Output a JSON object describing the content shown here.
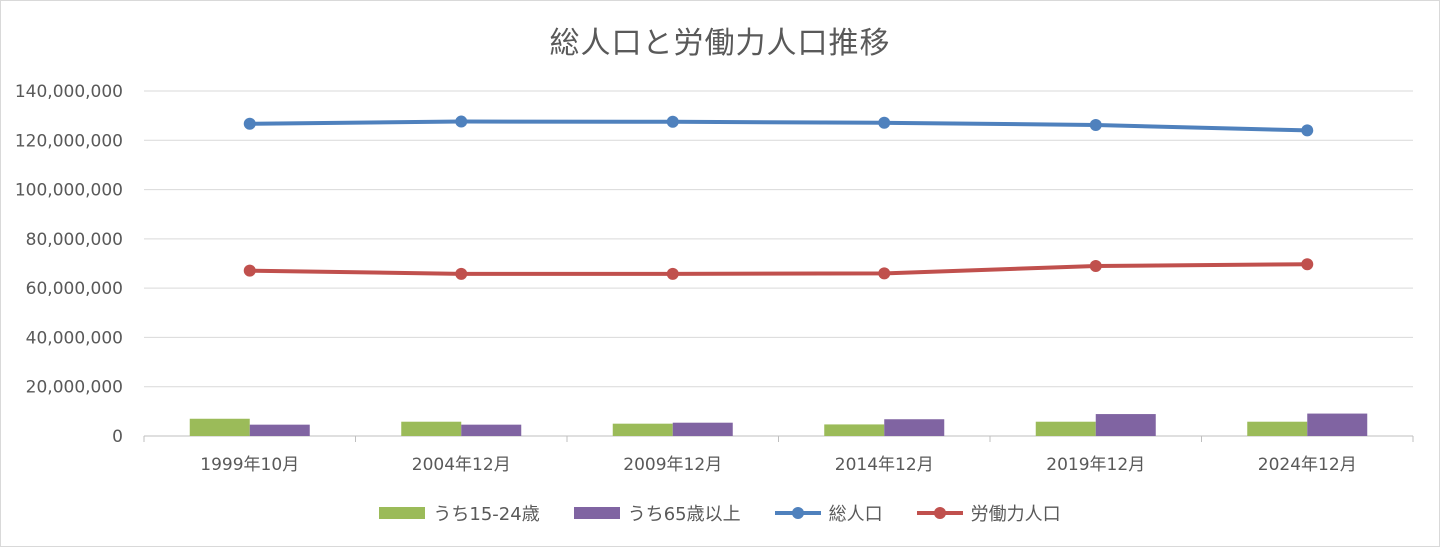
{
  "chart_data": {
    "type": "bar+line",
    "title": "総人口と労働力人口推移",
    "categories": [
      "1999年10月",
      "2004年12月",
      "2009年12月",
      "2014年12月",
      "2019年12月",
      "2024年12月"
    ],
    "series": [
      {
        "name": "うち15-24歳",
        "type": "bar",
        "color": "#9bbb59",
        "values": [
          7000000,
          5800000,
          5000000,
          4700000,
          5800000,
          5800000
        ]
      },
      {
        "name": "うち65歳以上",
        "type": "bar",
        "color": "#8064a2",
        "values": [
          4600000,
          4600000,
          5400000,
          6800000,
          8900000,
          9100000
        ]
      },
      {
        "name": "総人口",
        "type": "line",
        "color": "#4f81bd",
        "values": [
          126700000,
          127600000,
          127500000,
          127100000,
          126200000,
          124000000
        ]
      },
      {
        "name": "労働力人口",
        "type": "line",
        "color": "#c0504d",
        "values": [
          67100000,
          65800000,
          65800000,
          66000000,
          69000000,
          69700000
        ]
      }
    ],
    "ylim": [
      0,
      140000000
    ],
    "yticks": [
      0,
      20000000,
      40000000,
      60000000,
      80000000,
      100000000,
      120000000,
      140000000
    ],
    "ytick_labels": [
      "0",
      "20,000,000",
      "40,000,000",
      "60,000,000",
      "80,000,000",
      "100,000,000",
      "120,000,000",
      "140,000,000"
    ],
    "grid": true,
    "legend": "bottom"
  }
}
